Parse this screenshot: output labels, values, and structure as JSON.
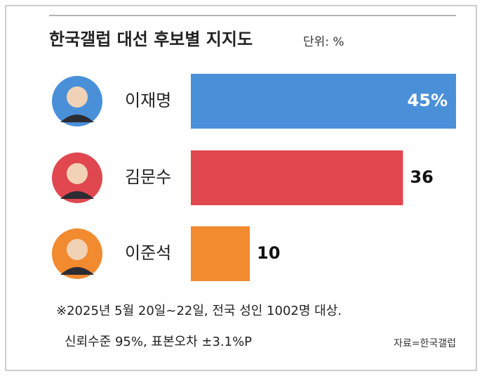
{
  "chart_data": {
    "type": "hbar",
    "title": "한국갤럽 대선 후보별 지지도",
    "subtitle": "단위: %",
    "categories": [
      "이재명",
      "김문수",
      "이준석"
    ],
    "values": [
      45,
      36,
      10
    ],
    "value_labels": [
      "45%",
      "36",
      "10"
    ],
    "colors": [
      "#4a90d9",
      "#e0474f",
      "#f28a30"
    ],
    "notes": [
      "※2025년 5월 20일~22일, 전국 성인 1002명 대상.",
      "신뢰수준 95%, 표본오차 ±3.1%P"
    ],
    "source": "자료=한국갤럽"
  }
}
